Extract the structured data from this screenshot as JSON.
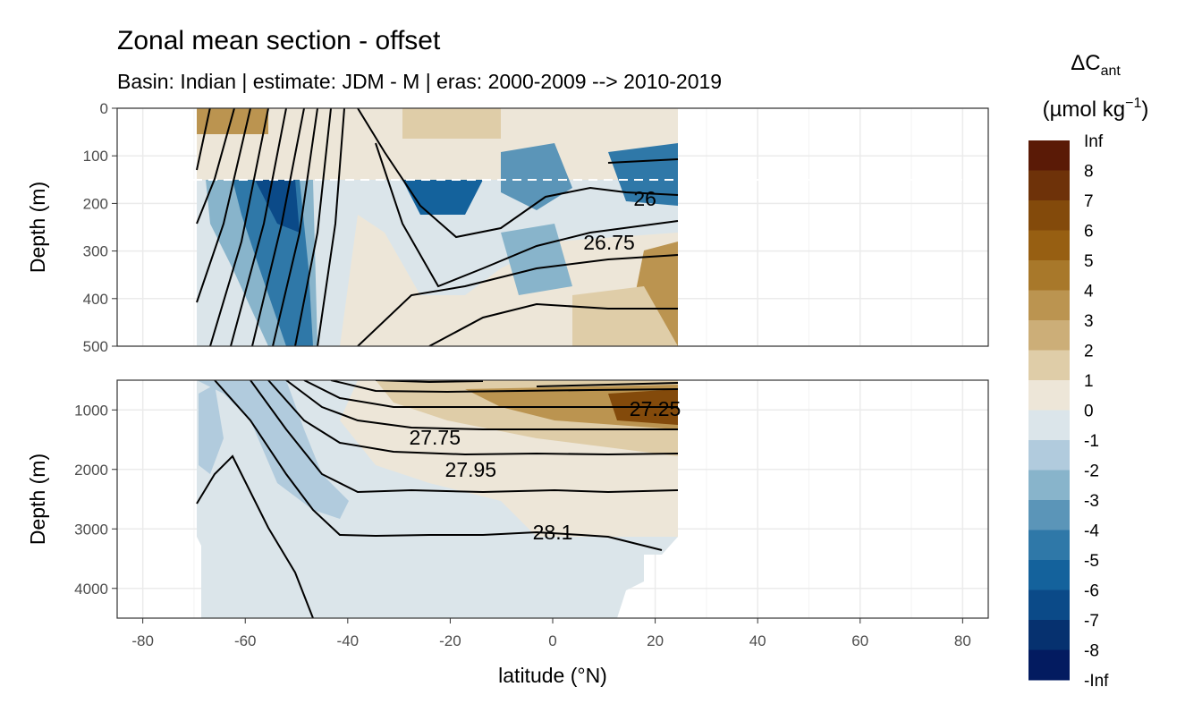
{
  "chart_data": {
    "type": "heatmap",
    "title": "Zonal mean section - offset",
    "subtitle": "Basin: Indian | estimate: JDM - M | eras: 2000-2009 --> 2010-2019",
    "xlabel": "latitude (°N)",
    "ylabel": "Depth (m)",
    "x_ticks": [
      "-80",
      "-60",
      "-40",
      "-20",
      "0",
      "20",
      "40",
      "60",
      "80"
    ],
    "x_range": [
      -85,
      85
    ],
    "panels": [
      {
        "name": "upper",
        "depth_range": [
          0,
          500
        ],
        "y_ticks": [
          "0",
          "100",
          "200",
          "300",
          "400",
          "500"
        ],
        "reference_depth_line": 150,
        "contour_labels": [
          {
            "text": "26",
            "lat": 18,
            "depth": 190
          },
          {
            "text": "26.75",
            "lat": 11,
            "depth": 282
          }
        ]
      },
      {
        "name": "lower",
        "depth_range": [
          500,
          4500
        ],
        "y_ticks": [
          "1000",
          "2000",
          "3000",
          "4000"
        ],
        "contour_labels": [
          {
            "text": "27.25",
            "lat": 20,
            "depth": 980
          },
          {
            "text": "27.75",
            "lat": -23,
            "depth": 1460
          },
          {
            "text": "27.95",
            "lat": -16,
            "depth": 2000
          },
          {
            "text": "28.1",
            "lat": 0,
            "depth": 3060
          }
        ]
      }
    ],
    "legend": {
      "title": "ΔC",
      "title_sub": "ant",
      "unit": "(µmol kg",
      "unit_sup": "−1",
      "unit_end": ")",
      "position": "right",
      "labels": [
        "Inf",
        "8",
        "7",
        "6",
        "5",
        "4",
        "3",
        "2",
        "1",
        "0",
        "-1",
        "-2",
        "-3",
        "-4",
        "-5",
        "-6",
        "-7",
        "-8",
        "-Inf"
      ],
      "colors": [
        "#5a1a06",
        "#6e3209",
        "#834a0b",
        "#975f12",
        "#a8782a",
        "#bb9450",
        "#ccae78",
        "#dfcda8",
        "#ede6d8",
        "#dbe5ea",
        "#b1cbdd",
        "#88b4cb",
        "#5b95b8",
        "#2f78a8",
        "#14629c",
        "#0b4a88",
        "#06316f",
        "#031b60"
      ]
    }
  }
}
